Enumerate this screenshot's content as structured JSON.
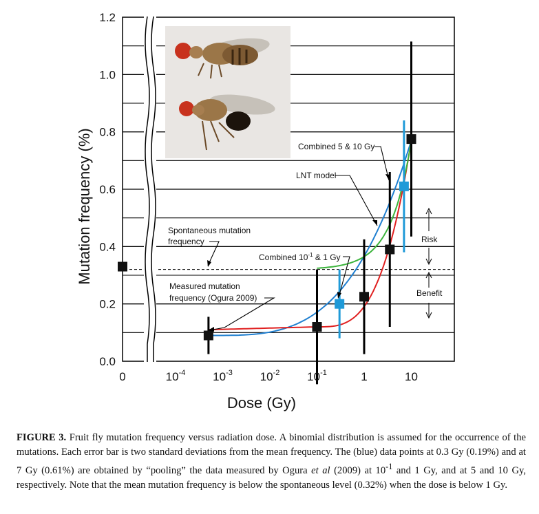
{
  "chart_data": {
    "type": "scatter",
    "xlabel": "Dose (Gy)",
    "ylabel": "Mutation frequency (%)",
    "x_scale": "log",
    "x_zero_break": true,
    "ylim": [
      0,
      1.2
    ],
    "y_ticks": [
      "0.0",
      "0.2",
      "0.4",
      "0.6",
      "0.8",
      "1.0",
      "1.2"
    ],
    "x_ticks": [
      {
        "label": "0",
        "value": 0
      },
      {
        "base": "10",
        "exp": "-4",
        "value": 0.0001
      },
      {
        "base": "10",
        "exp": "-3",
        "value": 0.001
      },
      {
        "base": "10",
        "exp": "-2",
        "value": 0.01
      },
      {
        "base": "10",
        "exp": "-1",
        "value": 0.1
      },
      {
        "label": "1",
        "value": 1
      },
      {
        "label": "10",
        "value": 10
      }
    ],
    "grid": "horizontal",
    "measured_points": [
      {
        "x": 0,
        "y": 0.33
      },
      {
        "x": 0.0005,
        "y": 0.09,
        "err": 0.065
      },
      {
        "x": 0.1,
        "y": 0.12,
        "err": 0.2
      },
      {
        "x": 1,
        "y": 0.225,
        "err": 0.2
      },
      {
        "x": 3.5,
        "y": 0.39,
        "err": 0.27
      },
      {
        "x": 10,
        "y": 0.775,
        "err": 0.34
      }
    ],
    "pooled_points": [
      {
        "x": 0.3,
        "y": 0.2,
        "err": 0.12
      },
      {
        "x": 7,
        "y": 0.61,
        "err": 0.23
      }
    ],
    "spontaneous_level": 0.32,
    "curves": {
      "lnt": {
        "color": "#3cb43c"
      },
      "blue_fit": {
        "color": "#1f7fd0"
      },
      "red_fit": {
        "color": "#e02020"
      }
    },
    "annotations": {
      "combined_5_10": "Combined 5 & 10 Gy",
      "lnt_model": "LNT model",
      "spontaneous_1": "Spontaneous mutation",
      "spontaneous_2": "frequency",
      "combined_01_1": "Combined 10",
      "combined_01_1_exp": "-1",
      "combined_01_1_tail": " & 1 Gy",
      "measured_1": "Measured mutation",
      "measured_2": "frequency (Ogura 2009)",
      "risk": "Risk",
      "benefit": "Benefit"
    },
    "inset": "photo-of-fruit-flies"
  },
  "caption": {
    "label": "FIGURE 3.",
    "part1": " Fruit fly mutation frequency versus radiation dose. A binomial distribution is assumed for the occurrence of the mutations. Each error bar is two standard deviations from the mean frequency. The (blue) data points at 0.3 Gy (0.19%) and at 7 Gy (0.61%) are obtained by “pooling” the data measured by Ogura ",
    "etal": "et al",
    "part2": " (2009) at 10",
    "sup": "-1",
    "part3": " and 1 Gy, and at 5 and 10 Gy, respectively. Note that the mean mutation frequency is below the spontaneous level (0.32%) when the dose is below 1 Gy."
  }
}
